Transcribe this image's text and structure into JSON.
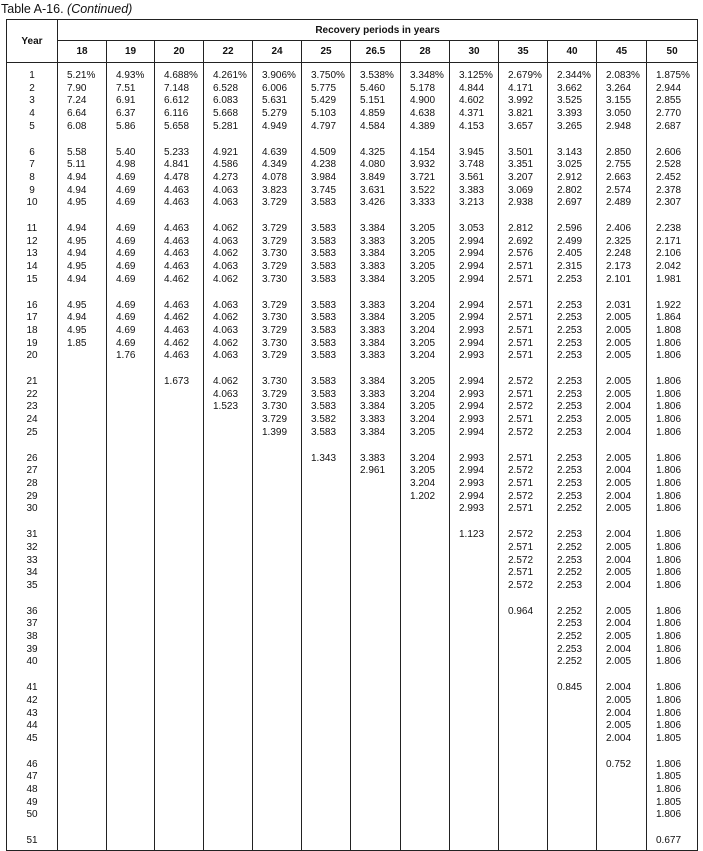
{
  "title": {
    "label": "Table A-16.",
    "note": "(Continued)"
  },
  "header": {
    "year": "Year",
    "group": "Recovery periods in years",
    "periods": [
      "18",
      "19",
      "20",
      "22",
      "24",
      "25",
      "26.5",
      "28",
      "30",
      "35",
      "40",
      "45",
      "50"
    ]
  },
  "rows": [
    {
      "year": "1",
      "values": [
        "5.21%",
        "4.93%",
        "4.688%",
        "4.261%",
        "3.906%",
        "3.750%",
        "3.538%",
        "3.348%",
        "3.125%",
        "2.679%",
        "2.344%",
        "2.083%",
        "1.875%"
      ]
    },
    {
      "year": "2",
      "values": [
        "7.90",
        "7.51",
        "7.148",
        "6.528",
        "6.006",
        "5.775",
        "5.460",
        "5.178",
        "4.844",
        "4.171",
        "3.662",
        "3.264",
        "2.944"
      ]
    },
    {
      "year": "3",
      "values": [
        "7.24",
        "6.91",
        "6.612",
        "6.083",
        "5.631",
        "5.429",
        "5.151",
        "4.900",
        "4.602",
        "3.992",
        "3.525",
        "3.155",
        "2.855"
      ]
    },
    {
      "year": "4",
      "values": [
        "6.64",
        "6.37",
        "6.116",
        "5.668",
        "5.279",
        "5.103",
        "4.859",
        "4.638",
        "4.371",
        "3.821",
        "3.393",
        "3.050",
        "2.770"
      ]
    },
    {
      "year": "5",
      "values": [
        "6.08",
        "5.86",
        "5.658",
        "5.281",
        "4.949",
        "4.797",
        "4.584",
        "4.389",
        "4.153",
        "3.657",
        "3.265",
        "2.948",
        "2.687"
      ]
    },
    {
      "year": "6",
      "values": [
        "5.58",
        "5.40",
        "5.233",
        "4.921",
        "4.639",
        "4.509",
        "4.325",
        "4.154",
        "3.945",
        "3.501",
        "3.143",
        "2.850",
        "2.606"
      ]
    },
    {
      "year": "7",
      "values": [
        "5.11",
        "4.98",
        "4.841",
        "4.586",
        "4.349",
        "4.238",
        "4.080",
        "3.932",
        "3.748",
        "3.351",
        "3.025",
        "2.755",
        "2.528"
      ]
    },
    {
      "year": "8",
      "values": [
        "4.94",
        "4.69",
        "4.478",
        "4.273",
        "4.078",
        "3.984",
        "3.849",
        "3.721",
        "3.561",
        "3.207",
        "2.912",
        "2.663",
        "2.452"
      ]
    },
    {
      "year": "9",
      "values": [
        "4.94",
        "4.69",
        "4.463",
        "4.063",
        "3.823",
        "3.745",
        "3.631",
        "3.522",
        "3.383",
        "3.069",
        "2.802",
        "2.574",
        "2.378"
      ]
    },
    {
      "year": "10",
      "values": [
        "4.95",
        "4.69",
        "4.463",
        "4.063",
        "3.729",
        "3.583",
        "3.426",
        "3.333",
        "3.213",
        "2.938",
        "2.697",
        "2.489",
        "2.307"
      ]
    },
    {
      "year": "11",
      "values": [
        "4.94",
        "4.69",
        "4.463",
        "4.062",
        "3.729",
        "3.583",
        "3.384",
        "3.205",
        "3.053",
        "2.812",
        "2.596",
        "2.406",
        "2.238"
      ]
    },
    {
      "year": "12",
      "values": [
        "4.95",
        "4.69",
        "4.463",
        "4.063",
        "3.729",
        "3.583",
        "3.383",
        "3.205",
        "2.994",
        "2.692",
        "2.499",
        "2.325",
        "2.171"
      ]
    },
    {
      "year": "13",
      "values": [
        "4.94",
        "4.69",
        "4.463",
        "4.062",
        "3.730",
        "3.583",
        "3.384",
        "3.205",
        "2.994",
        "2.576",
        "2.405",
        "2.248",
        "2.106"
      ]
    },
    {
      "year": "14",
      "values": [
        "4.95",
        "4.69",
        "4.463",
        "4.063",
        "3.729",
        "3.583",
        "3.383",
        "3.205",
        "2.994",
        "2.571",
        "2.315",
        "2.173",
        "2.042"
      ]
    },
    {
      "year": "15",
      "values": [
        "4.94",
        "4.69",
        "4.462",
        "4.062",
        "3.730",
        "3.583",
        "3.384",
        "3.205",
        "2.994",
        "2.571",
        "2.253",
        "2.101",
        "1.981"
      ]
    },
    {
      "year": "16",
      "values": [
        "4.95",
        "4.69",
        "4.463",
        "4.063",
        "3.729",
        "3.583",
        "3.383",
        "3.204",
        "2.994",
        "2.571",
        "2.253",
        "2.031",
        "1.922"
      ]
    },
    {
      "year": "17",
      "values": [
        "4.94",
        "4.69",
        "4.462",
        "4.062",
        "3.730",
        "3.583",
        "3.384",
        "3.205",
        "2.994",
        "2.571",
        "2.253",
        "2.005",
        "1.864"
      ]
    },
    {
      "year": "18",
      "values": [
        "4.95",
        "4.69",
        "4.463",
        "4.063",
        "3.729",
        "3.583",
        "3.383",
        "3.204",
        "2.993",
        "2.571",
        "2.253",
        "2.005",
        "1.808"
      ]
    },
    {
      "year": "19",
      "values": [
        "1.85",
        "4.69",
        "4.462",
        "4.062",
        "3.730",
        "3.583",
        "3.384",
        "3.205",
        "2.994",
        "2.571",
        "2.253",
        "2.005",
        "1.806"
      ]
    },
    {
      "year": "20",
      "values": [
        "",
        "1.76",
        "4.463",
        "4.063",
        "3.729",
        "3.583",
        "3.383",
        "3.204",
        "2.993",
        "2.571",
        "2.253",
        "2.005",
        "1.806"
      ]
    },
    {
      "year": "21",
      "values": [
        "",
        "",
        "1.673",
        "4.062",
        "3.730",
        "3.583",
        "3.384",
        "3.205",
        "2.994",
        "2.572",
        "2.253",
        "2.005",
        "1.806"
      ]
    },
    {
      "year": "22",
      "values": [
        "",
        "",
        "",
        "4.063",
        "3.729",
        "3.583",
        "3.383",
        "3.204",
        "2.993",
        "2.571",
        "2.253",
        "2.005",
        "1.806"
      ]
    },
    {
      "year": "23",
      "values": [
        "",
        "",
        "",
        "1.523",
        "3.730",
        "3.583",
        "3.384",
        "3.205",
        "2.994",
        "2.572",
        "2.253",
        "2.004",
        "1.806"
      ]
    },
    {
      "year": "24",
      "values": [
        "",
        "",
        "",
        "",
        "3.729",
        "3.582",
        "3.383",
        "3.204",
        "2.993",
        "2.571",
        "2.253",
        "2.005",
        "1.806"
      ]
    },
    {
      "year": "25",
      "values": [
        "",
        "",
        "",
        "",
        "1.399",
        "3.583",
        "3.384",
        "3.205",
        "2.994",
        "2.572",
        "2.253",
        "2.004",
        "1.806"
      ]
    },
    {
      "year": "26",
      "values": [
        "",
        "",
        "",
        "",
        "",
        "1.343",
        "3.383",
        "3.204",
        "2.993",
        "2.571",
        "2.253",
        "2.005",
        "1.806"
      ]
    },
    {
      "year": "27",
      "values": [
        "",
        "",
        "",
        "",
        "",
        "",
        "2.961",
        "3.205",
        "2.994",
        "2.572",
        "2.253",
        "2.004",
        "1.806"
      ]
    },
    {
      "year": "28",
      "values": [
        "",
        "",
        "",
        "",
        "",
        "",
        "",
        "3.204",
        "2.993",
        "2.571",
        "2.253",
        "2.005",
        "1.806"
      ]
    },
    {
      "year": "29",
      "values": [
        "",
        "",
        "",
        "",
        "",
        "",
        "",
        "1.202",
        "2.994",
        "2.572",
        "2.253",
        "2.004",
        "1.806"
      ]
    },
    {
      "year": "30",
      "values": [
        "",
        "",
        "",
        "",
        "",
        "",
        "",
        "",
        "2.993",
        "2.571",
        "2.252",
        "2.005",
        "1.806"
      ]
    },
    {
      "year": "31",
      "values": [
        "",
        "",
        "",
        "",
        "",
        "",
        "",
        "",
        "1.123",
        "2.572",
        "2.253",
        "2.004",
        "1.806"
      ]
    },
    {
      "year": "32",
      "values": [
        "",
        "",
        "",
        "",
        "",
        "",
        "",
        "",
        "",
        "2.571",
        "2.252",
        "2.005",
        "1.806"
      ]
    },
    {
      "year": "33",
      "values": [
        "",
        "",
        "",
        "",
        "",
        "",
        "",
        "",
        "",
        "2.572",
        "2.253",
        "2.004",
        "1.806"
      ]
    },
    {
      "year": "34",
      "values": [
        "",
        "",
        "",
        "",
        "",
        "",
        "",
        "",
        "",
        "2.571",
        "2.252",
        "2.005",
        "1.806"
      ]
    },
    {
      "year": "35",
      "values": [
        "",
        "",
        "",
        "",
        "",
        "",
        "",
        "",
        "",
        "2.572",
        "2.253",
        "2.004",
        "1.806"
      ]
    },
    {
      "year": "36",
      "values": [
        "",
        "",
        "",
        "",
        "",
        "",
        "",
        "",
        "",
        "0.964",
        "2.252",
        "2.005",
        "1.806"
      ]
    },
    {
      "year": "37",
      "values": [
        "",
        "",
        "",
        "",
        "",
        "",
        "",
        "",
        "",
        "",
        "2.253",
        "2.004",
        "1.806"
      ]
    },
    {
      "year": "38",
      "values": [
        "",
        "",
        "",
        "",
        "",
        "",
        "",
        "",
        "",
        "",
        "2.252",
        "2.005",
        "1.806"
      ]
    },
    {
      "year": "39",
      "values": [
        "",
        "",
        "",
        "",
        "",
        "",
        "",
        "",
        "",
        "",
        "2.253",
        "2.004",
        "1.806"
      ]
    },
    {
      "year": "40",
      "values": [
        "",
        "",
        "",
        "",
        "",
        "",
        "",
        "",
        "",
        "",
        "2.252",
        "2.005",
        "1.806"
      ]
    },
    {
      "year": "41",
      "values": [
        "",
        "",
        "",
        "",
        "",
        "",
        "",
        "",
        "",
        "",
        "0.845",
        "2.004",
        "1.806"
      ]
    },
    {
      "year": "42",
      "values": [
        "",
        "",
        "",
        "",
        "",
        "",
        "",
        "",
        "",
        "",
        "",
        "2.005",
        "1.806"
      ]
    },
    {
      "year": "43",
      "values": [
        "",
        "",
        "",
        "",
        "",
        "",
        "",
        "",
        "",
        "",
        "",
        "2.004",
        "1.806"
      ]
    },
    {
      "year": "44",
      "values": [
        "",
        "",
        "",
        "",
        "",
        "",
        "",
        "",
        "",
        "",
        "",
        "2.005",
        "1.806"
      ]
    },
    {
      "year": "45",
      "values": [
        "",
        "",
        "",
        "",
        "",
        "",
        "",
        "",
        "",
        "",
        "",
        "2.004",
        "1.805"
      ]
    },
    {
      "year": "46",
      "values": [
        "",
        "",
        "",
        "",
        "",
        "",
        "",
        "",
        "",
        "",
        "",
        "0.752",
        "1.806"
      ]
    },
    {
      "year": "47",
      "values": [
        "",
        "",
        "",
        "",
        "",
        "",
        "",
        "",
        "",
        "",
        "",
        "",
        "1.805"
      ]
    },
    {
      "year": "48",
      "values": [
        "",
        "",
        "",
        "",
        "",
        "",
        "",
        "",
        "",
        "",
        "",
        "",
        "1.806"
      ]
    },
    {
      "year": "49",
      "values": [
        "",
        "",
        "",
        "",
        "",
        "",
        "",
        "",
        "",
        "",
        "",
        "",
        "1.805"
      ]
    },
    {
      "year": "50",
      "values": [
        "",
        "",
        "",
        "",
        "",
        "",
        "",
        "",
        "",
        "",
        "",
        "",
        "1.806"
      ]
    },
    {
      "year": "51",
      "values": [
        "",
        "",
        "",
        "",
        "",
        "",
        "",
        "",
        "",
        "",
        "",
        "",
        "0.677"
      ]
    }
  ]
}
